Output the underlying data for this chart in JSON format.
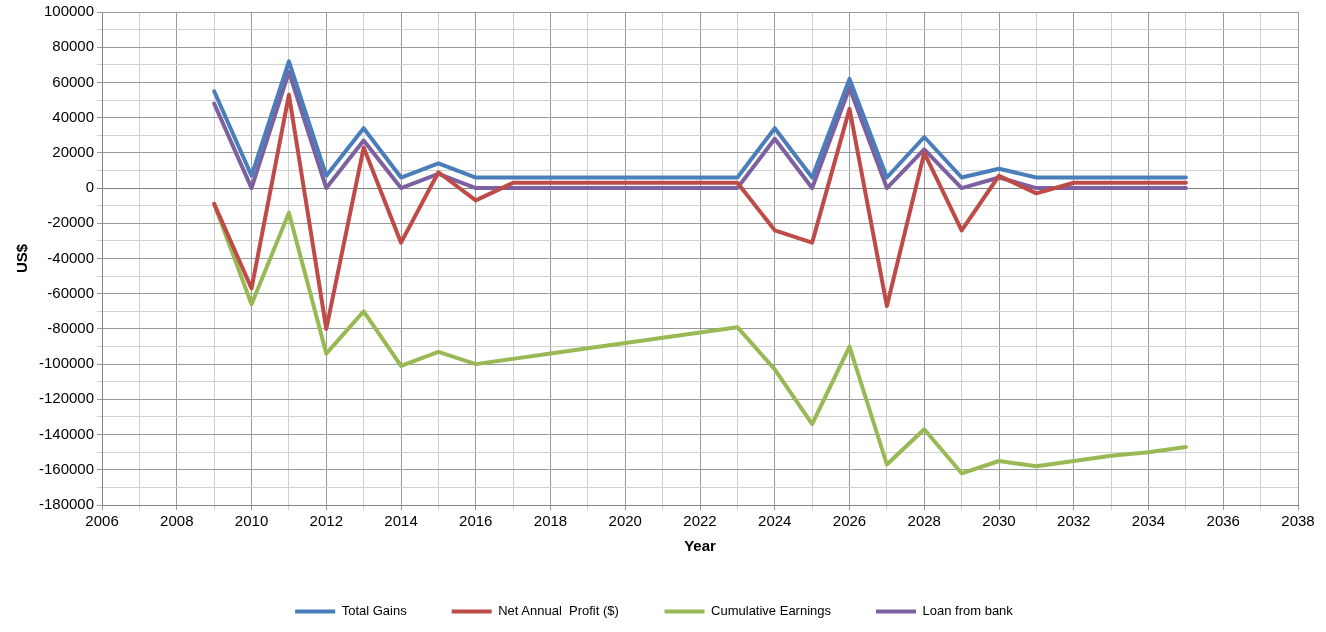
{
  "chart_data": {
    "type": "line",
    "xlabel": "Year",
    "ylabel": "US$",
    "x": [
      2009,
      2010,
      2011,
      2012,
      2013,
      2014,
      2015,
      2016,
      2017,
      2018,
      2019,
      2020,
      2021,
      2022,
      2023,
      2024,
      2025,
      2026,
      2027,
      2028,
      2029,
      2030,
      2031,
      2032,
      2033,
      2034,
      2035
    ],
    "series": [
      {
        "name": "Total Gains",
        "color": "#4a7ebb",
        "values": [
          55000,
          7000,
          72000,
          7000,
          34000,
          6000,
          14000,
          6000,
          6000,
          6000,
          6000,
          6000,
          6000,
          6000,
          6000,
          34000,
          6000,
          62000,
          6000,
          29000,
          6000,
          11000,
          6000,
          6000,
          6000,
          6000,
          6000
        ]
      },
      {
        "name": "Net Annual  Profit ($)",
        "color": "#be4b48",
        "values": [
          -9000,
          -57000,
          53000,
          -80000,
          23000,
          -31000,
          9000,
          -7000,
          3000,
          3000,
          3000,
          3000,
          3000,
          3000,
          3000,
          -24000,
          -31000,
          45000,
          -67000,
          20000,
          -24000,
          7000,
          -3000,
          3000,
          3000,
          3000,
          3000
        ]
      },
      {
        "name": "Cumulative Earnings",
        "color": "#98b954",
        "values": [
          -9000,
          -66000,
          -14000,
          -94000,
          -70000,
          -101000,
          -93000,
          -100000,
          -97000,
          -94000,
          -91000,
          -88000,
          -85000,
          -82000,
          -79000,
          -103000,
          -134000,
          -90000,
          -157000,
          -137000,
          -162000,
          -155000,
          -158000,
          -155000,
          -152000,
          -150000,
          -147000
        ]
      },
      {
        "name": "Loan from bank",
        "color": "#7d60a0",
        "values": [
          48000,
          0,
          66000,
          0,
          27000,
          0,
          8000,
          0,
          0,
          0,
          0,
          0,
          0,
          0,
          0,
          28000,
          0,
          57000,
          0,
          22000,
          0,
          6000,
          0,
          0,
          0,
          0,
          0
        ]
      }
    ],
    "xlim": [
      2006,
      2038
    ],
    "xticks": [
      2006,
      {
        "value": 2007,
        "label": null
      },
      2008,
      {
        "value": 2009,
        "label": null
      },
      2010,
      {
        "value": 2011,
        "label": null
      },
      2012,
      {
        "value": 2013,
        "label": null
      },
      2014,
      {
        "value": 2015,
        "label": null
      },
      2016,
      {
        "value": 2017,
        "label": null
      },
      2018,
      {
        "value": 2019,
        "label": null
      },
      2020,
      {
        "value": 2021,
        "label": null
      },
      2022,
      {
        "value": 2023,
        "label": null
      },
      2024,
      {
        "value": 2025,
        "label": null
      },
      2026,
      {
        "value": 2027,
        "label": null
      },
      2028,
      {
        "value": 2029,
        "label": null
      },
      2030,
      {
        "value": 2031,
        "label": null
      },
      2032,
      {
        "value": 2033,
        "label": null
      },
      2034,
      {
        "value": 2035,
        "label": null
      },
      2036,
      {
        "value": 2037,
        "label": null
      },
      2038
    ],
    "ylim": [
      -180000,
      100000
    ],
    "yticks": [
      -180000,
      {
        "value": -170000,
        "label": null
      },
      -160000,
      {
        "value": -150000,
        "label": null
      },
      -140000,
      {
        "value": -130000,
        "label": null
      },
      -120000,
      {
        "value": -110000,
        "label": null
      },
      -100000,
      {
        "value": -90000,
        "label": null
      },
      -80000,
      {
        "value": -70000,
        "label": null
      },
      -60000,
      {
        "value": -50000,
        "label": null
      },
      -40000,
      {
        "value": -30000,
        "label": null
      },
      -20000,
      {
        "value": -10000,
        "label": null
      },
      0,
      {
        "value": 10000,
        "label": null
      },
      20000,
      {
        "value": 30000,
        "label": null
      },
      40000,
      {
        "value": 50000,
        "label": null
      },
      60000,
      {
        "value": 70000,
        "label": null
      },
      80000,
      {
        "value": 90000,
        "label": null
      },
      100000
    ],
    "grid": true,
    "legend": "bottom",
    "marker": "none",
    "line_style": "solid"
  }
}
